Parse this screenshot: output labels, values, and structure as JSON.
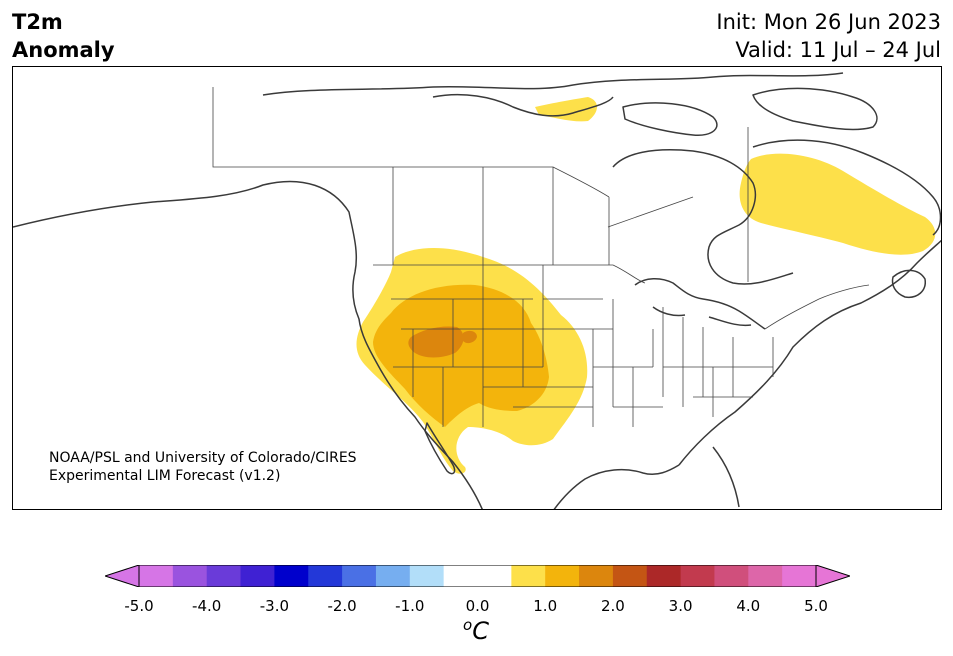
{
  "title": {
    "line1": "T2m",
    "line2": "Anomaly"
  },
  "info": {
    "init": "Init: Mon 26 Jun 2023",
    "valid": "Valid: 11 Jul – 24 Jul"
  },
  "credit": {
    "line1": "NOAA/PSL and University of Colorado/CIRES",
    "line2": "Experimental LIM Forecast (v1.2)"
  },
  "colorbar": {
    "ticks": [
      "-5.0",
      "-4.0",
      "-3.0",
      "-2.0",
      "-1.0",
      "0.0",
      "1.0",
      "2.0",
      "3.0",
      "4.0",
      "5.0"
    ],
    "colors": [
      "#d675e6",
      "#9a53df",
      "#6a3bd9",
      "#3f21d3",
      "#0000cc",
      "#2338d8",
      "#4a70e5",
      "#76aef0",
      "#b2def9",
      "#ffffff",
      "#ffffff",
      "#fde04a",
      "#f3b40c",
      "#dc860d",
      "#c45514",
      "#ac2828",
      "#c23a4e",
      "#d04f7c",
      "#dd66a9",
      "#e675d6"
    ],
    "under_color": "#d675e6",
    "over_color": "#e675d6",
    "unit_base": "C",
    "unit_sup": "o"
  },
  "map": {
    "anomaly_colors": {
      "level_1_0": "#fde04a",
      "level_1_5": "#f3b40c",
      "level_2_0": "#dc860d"
    }
  }
}
